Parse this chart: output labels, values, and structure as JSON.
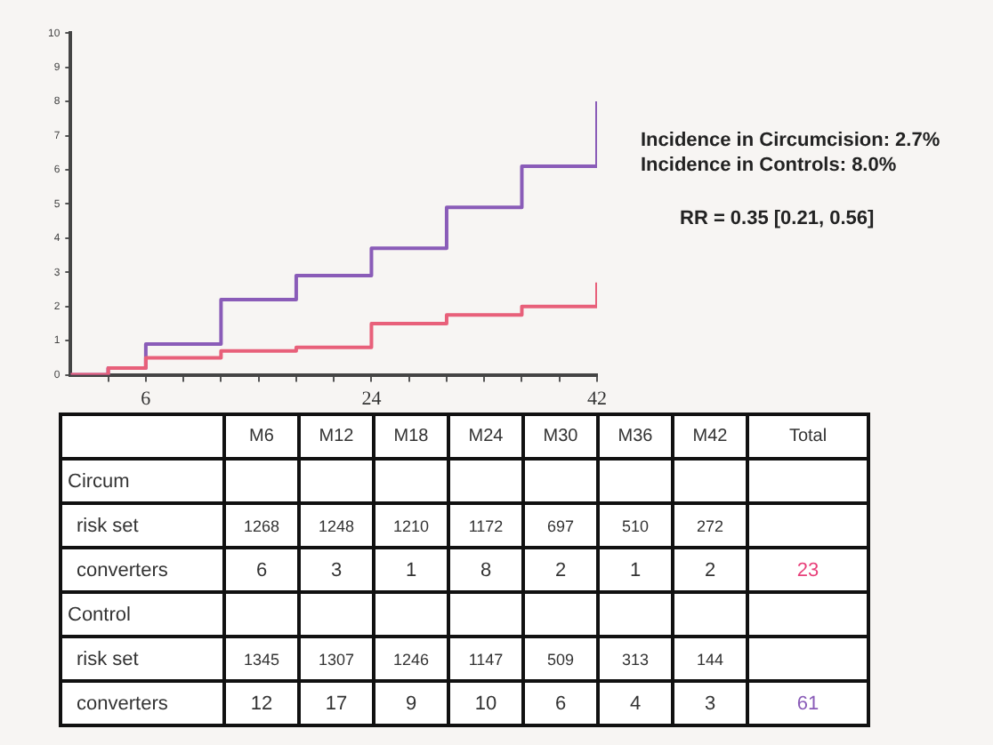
{
  "chart_data": [
    {
      "type": "step",
      "x": [
        0,
        3,
        6,
        12,
        18,
        24,
        30,
        36,
        42
      ],
      "series": [
        {
          "color": "#e8607a",
          "values": [
            0,
            0.2,
            0.5,
            0.7,
            0.8,
            1.5,
            1.75,
            2.0,
            2.7
          ]
        },
        {
          "color": "#8a5cb8",
          "values": [
            0,
            0.2,
            0.9,
            2.2,
            2.9,
            3.7,
            4.9,
            6.1,
            8.0
          ]
        }
      ],
      "xlim": [
        0,
        42
      ],
      "xticks": [
        {
          "value": 3,
          "label": null
        },
        6,
        {
          "value": 9,
          "label": null
        },
        {
          "value": 12,
          "label": null
        },
        {
          "value": 15,
          "label": null
        },
        {
          "value": 18,
          "label": null
        },
        {
          "value": 21,
          "label": null
        },
        24,
        {
          "value": 27,
          "label": null
        },
        {
          "value": 30,
          "label": null
        },
        {
          "value": 33,
          "label": null
        },
        {
          "value": 36,
          "label": null
        },
        {
          "value": 39,
          "label": null
        },
        42
      ],
      "ylim": [
        0,
        10
      ],
      "yticks": [
        0,
        1,
        2,
        3,
        4,
        5,
        6,
        7,
        8,
        9,
        10
      ],
      "grid": false,
      "legend": false,
      "marker": "none",
      "line_style": "solid",
      "annotations": [
        "Incidence in Circumcision: 2.7%",
        "Incidence in Controls: 8.0%",
        "RR = 0.35 [0.21, 0.56]"
      ]
    },
    {
      "type": "other",
      "categories": [
        "M6",
        "M12",
        "M18",
        "M24",
        "M30",
        "M36",
        "M42",
        "Total"
      ],
      "data_labels": true,
      "series": [
        {
          "name": "Circum",
          "values": [
            null,
            null,
            null,
            null,
            null,
            null,
            null,
            null
          ]
        },
        {
          "name": "risk set",
          "values": [
            1268,
            1248,
            1210,
            1172,
            697,
            510,
            272,
            null
          ]
        },
        {
          "name": "converters",
          "values": [
            6,
            3,
            1,
            8,
            2,
            1,
            2,
            23
          ],
          "colors": [
            "#333333",
            "#333333",
            "#333333",
            "#333333",
            "#333333",
            "#333333",
            "#333333",
            "#e8407a"
          ]
        },
        {
          "name": "Control",
          "values": [
            null,
            null,
            null,
            null,
            null,
            null,
            null,
            null
          ]
        },
        {
          "name": "risk set",
          "values": [
            1345,
            1307,
            1246,
            1147,
            509,
            313,
            144,
            null
          ]
        },
        {
          "name": "converters",
          "values": [
            12,
            17,
            9,
            10,
            6,
            4,
            3,
            61
          ],
          "colors": [
            "#333333",
            "#333333",
            "#333333",
            "#333333",
            "#333333",
            "#333333",
            "#333333",
            "#8a5cb8"
          ]
        }
      ]
    }
  ]
}
